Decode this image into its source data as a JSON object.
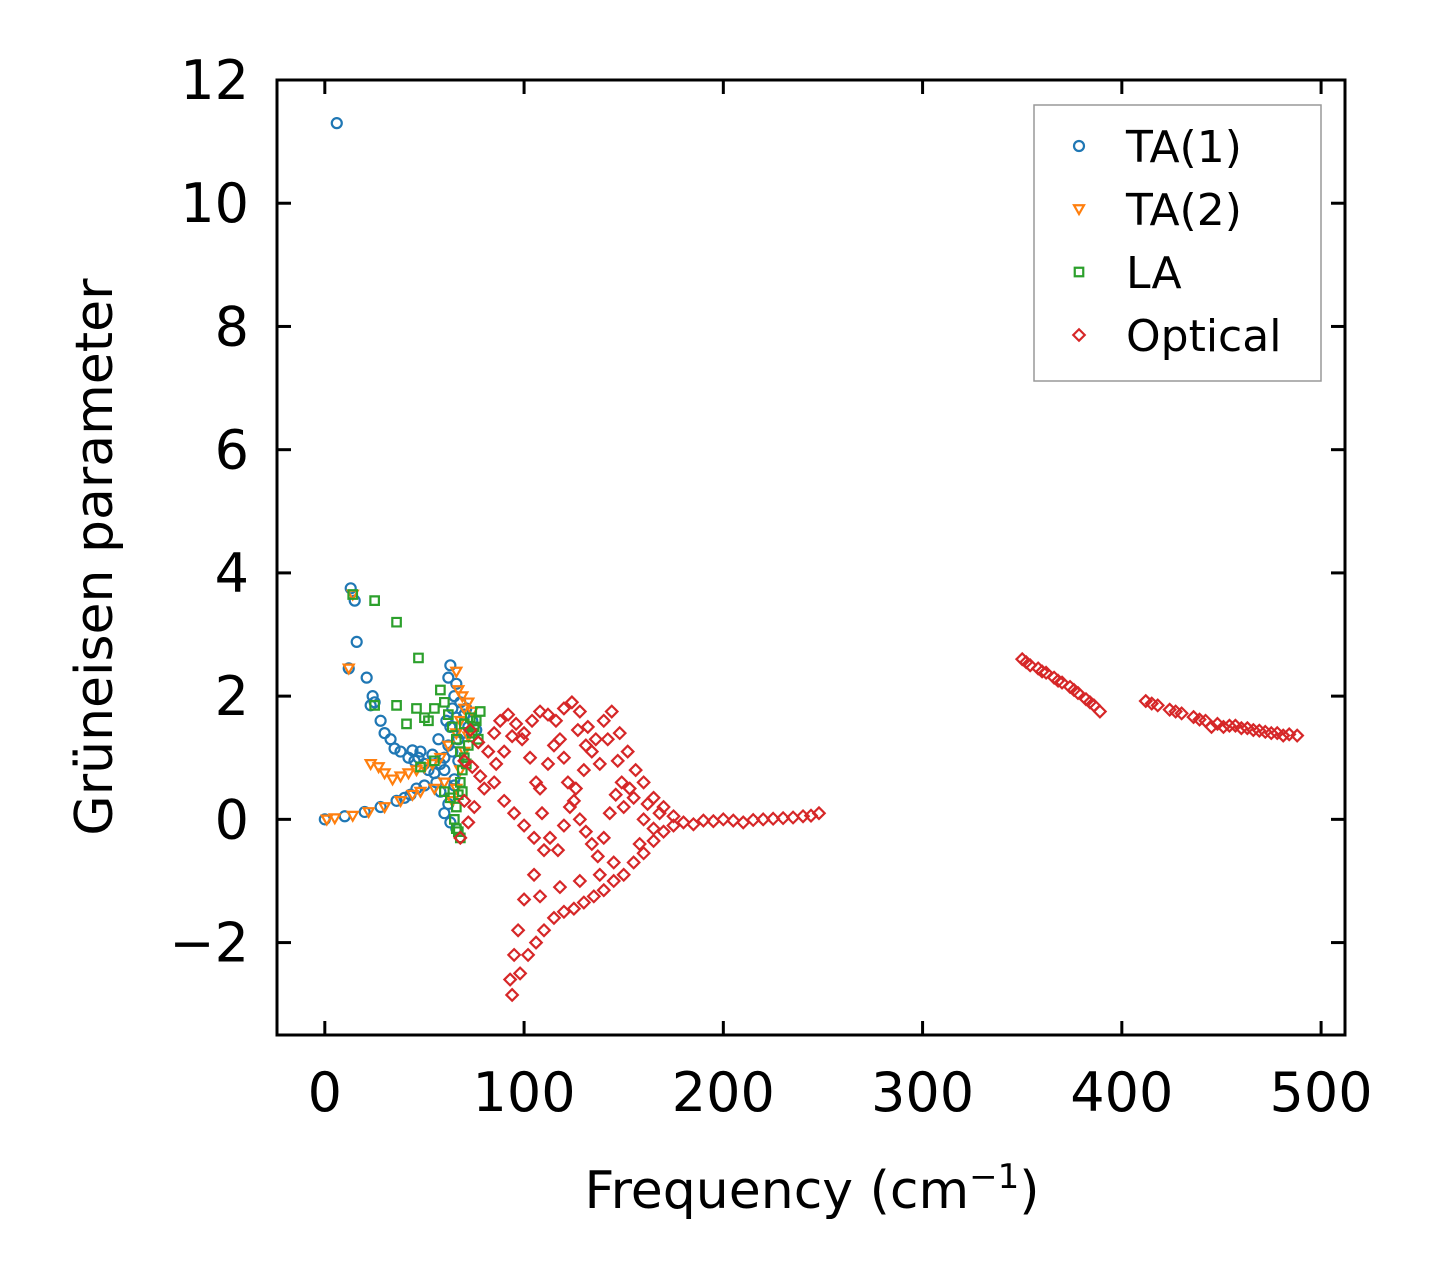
{
  "chart_data": {
    "type": "scatter",
    "title": "",
    "xlabel": "Frequency (cm",
    "xlabel_sup": "−1",
    "xlabel_end": ")",
    "ylabel": "Grüneisen parameter",
    "xlim": [
      -24,
      512
    ],
    "ylim": [
      -3.5,
      12
    ],
    "xticks": [
      0,
      100,
      200,
      300,
      400,
      500
    ],
    "yticks": [
      -2,
      0,
      2,
      4,
      6,
      8,
      10,
      12
    ],
    "xtick_labels": [
      "0",
      "100",
      "200",
      "300",
      "400",
      "500"
    ],
    "ytick_labels": [
      "−2",
      "0",
      "2",
      "4",
      "6",
      "8",
      "10",
      "12"
    ],
    "grid": false,
    "legend_position": "top-right",
    "series": [
      {
        "name": "TA(1)",
        "marker": "circle",
        "color": "#1f77b4",
        "points": [
          [
            6,
            11.3
          ],
          [
            13,
            3.75
          ],
          [
            15,
            3.55
          ],
          [
            16,
            2.88
          ],
          [
            12,
            2.45
          ],
          [
            21,
            2.3
          ],
          [
            24,
            2.0
          ],
          [
            25,
            1.9
          ],
          [
            23,
            1.85
          ],
          [
            28,
            1.6
          ],
          [
            30,
            1.4
          ],
          [
            33,
            1.3
          ],
          [
            35,
            1.15
          ],
          [
            38,
            1.1
          ],
          [
            42,
            1.0
          ],
          [
            45,
            0.95
          ],
          [
            48,
            1.1
          ],
          [
            50,
            0.9
          ],
          [
            52,
            0.8
          ],
          [
            55,
            0.75
          ],
          [
            58,
            0.9
          ],
          [
            60,
            1.0
          ],
          [
            62,
            1.2
          ],
          [
            63,
            1.5
          ],
          [
            64,
            1.8
          ],
          [
            65,
            2.0
          ],
          [
            62,
            2.3
          ],
          [
            63,
            2.5
          ],
          [
            66,
            2.2
          ],
          [
            68,
            1.9
          ],
          [
            70,
            1.7
          ],
          [
            72,
            1.5
          ],
          [
            67,
            1.3
          ],
          [
            64,
            1.1
          ],
          [
            60,
            0.8
          ],
          [
            56,
            0.6
          ],
          [
            50,
            0.55
          ],
          [
            46,
            0.5
          ],
          [
            43,
            0.4
          ],
          [
            40,
            0.35
          ],
          [
            36,
            0.3
          ],
          [
            28,
            0.2
          ],
          [
            20,
            0.12
          ],
          [
            10,
            0.05
          ],
          [
            0,
            0.0
          ],
          [
            60,
            0.1
          ],
          [
            63,
            -0.05
          ],
          [
            66,
            -0.15
          ],
          [
            44,
            1.12
          ],
          [
            47,
            1.0
          ],
          [
            54,
            1.05
          ],
          [
            57,
            1.3
          ],
          [
            61,
            1.6
          ],
          [
            66,
            1.65
          ],
          [
            69,
            1.4
          ],
          [
            71,
            1.8
          ],
          [
            74,
            1.6
          ],
          [
            76,
            1.45
          ],
          [
            65,
            0.65
          ],
          [
            58,
            0.45
          ],
          [
            62,
            0.25
          ],
          [
            65,
            0.55
          ],
          [
            67,
            0.95
          ]
        ]
      },
      {
        "name": "TA(2)",
        "marker": "triangle-down",
        "color": "#ff7f0e",
        "points": [
          [
            12,
            2.45
          ],
          [
            14,
            3.65
          ],
          [
            23,
            0.9
          ],
          [
            27,
            0.85
          ],
          [
            30,
            0.75
          ],
          [
            34,
            0.65
          ],
          [
            38,
            0.7
          ],
          [
            42,
            0.75
          ],
          [
            46,
            0.8
          ],
          [
            50,
            0.85
          ],
          [
            54,
            0.9
          ],
          [
            58,
            1.0
          ],
          [
            62,
            1.2
          ],
          [
            66,
            1.4
          ],
          [
            68,
            1.6
          ],
          [
            70,
            1.8
          ],
          [
            66,
            2.4
          ],
          [
            67,
            2.1
          ],
          [
            69,
            2.0
          ],
          [
            72,
            1.9
          ],
          [
            74,
            1.75
          ],
          [
            60,
            0.6
          ],
          [
            55,
            0.5
          ],
          [
            48,
            0.45
          ],
          [
            44,
            0.4
          ],
          [
            38,
            0.3
          ],
          [
            30,
            0.2
          ],
          [
            22,
            0.12
          ],
          [
            14,
            0.06
          ],
          [
            5,
            0.02
          ],
          [
            1,
            0.0
          ],
          [
            64,
            0.3
          ],
          [
            66,
            0.5
          ],
          [
            68,
            0.8
          ],
          [
            70,
            1.1
          ],
          [
            72,
            1.35
          ]
        ]
      },
      {
        "name": "LA",
        "marker": "square",
        "color": "#2ca02c",
        "points": [
          [
            14,
            3.65
          ],
          [
            25,
            3.55
          ],
          [
            36,
            3.2
          ],
          [
            47,
            2.62
          ],
          [
            25,
            1.85
          ],
          [
            36,
            1.85
          ],
          [
            41,
            1.55
          ],
          [
            46,
            1.8
          ],
          [
            50,
            1.65
          ],
          [
            52,
            1.6
          ],
          [
            55,
            1.8
          ],
          [
            58,
            2.1
          ],
          [
            60,
            1.9
          ],
          [
            62,
            1.7
          ],
          [
            64,
            1.5
          ],
          [
            66,
            1.3
          ],
          [
            68,
            1.1
          ],
          [
            70,
            1.0
          ],
          [
            72,
            1.2
          ],
          [
            74,
            1.4
          ],
          [
            76,
            1.6
          ],
          [
            78,
            1.75
          ],
          [
            69,
            0.8
          ],
          [
            68,
            0.6
          ],
          [
            67,
            0.4
          ],
          [
            66,
            0.2
          ],
          [
            65,
            0.0
          ],
          [
            67,
            -0.2
          ],
          [
            68,
            -0.3
          ],
          [
            60,
            0.45
          ],
          [
            70,
            1.55
          ],
          [
            73,
            1.65
          ],
          [
            75,
            1.5
          ],
          [
            77,
            1.3
          ],
          [
            71,
            0.9
          ],
          [
            69,
            0.45
          ],
          [
            66,
            -0.15
          ],
          [
            63,
            0.35
          ],
          [
            55,
            0.95
          ],
          [
            48,
            0.85
          ]
        ]
      },
      {
        "name": "Optical",
        "marker": "diamond",
        "color": "#d62728",
        "points": [
          [
            68,
            -0.3
          ],
          [
            70,
            0.3
          ],
          [
            72,
            -0.05
          ],
          [
            70,
            0.95
          ],
          [
            74,
            0.85
          ],
          [
            78,
            0.7
          ],
          [
            82,
            1.1
          ],
          [
            85,
            1.4
          ],
          [
            88,
            1.6
          ],
          [
            92,
            1.7
          ],
          [
            96,
            1.55
          ],
          [
            100,
            1.4
          ],
          [
            104,
            1.6
          ],
          [
            108,
            1.75
          ],
          [
            112,
            1.7
          ],
          [
            116,
            1.6
          ],
          [
            120,
            1.8
          ],
          [
            124,
            1.9
          ],
          [
            128,
            1.75
          ],
          [
            132,
            1.5
          ],
          [
            136,
            1.3
          ],
          [
            140,
            1.6
          ],
          [
            144,
            1.75
          ],
          [
            148,
            1.4
          ],
          [
            152,
            1.1
          ],
          [
            156,
            0.8
          ],
          [
            160,
            0.6
          ],
          [
            165,
            0.35
          ],
          [
            170,
            0.2
          ],
          [
            175,
            0.05
          ],
          [
            180,
            -0.05
          ],
          [
            190,
            -0.02
          ],
          [
            200,
            0.0
          ],
          [
            210,
            -0.05
          ],
          [
            220,
            0.0
          ],
          [
            230,
            0.02
          ],
          [
            240,
            0.05
          ],
          [
            248,
            0.1
          ],
          [
            85,
            0.6
          ],
          [
            90,
            0.3
          ],
          [
            95,
            0.1
          ],
          [
            100,
            -0.1
          ],
          [
            105,
            -0.3
          ],
          [
            108,
            0.5
          ],
          [
            112,
            0.9
          ],
          [
            115,
            1.2
          ],
          [
            110,
            -0.5
          ],
          [
            105,
            -0.9
          ],
          [
            100,
            -1.3
          ],
          [
            97,
            -1.8
          ],
          [
            95,
            -2.2
          ],
          [
            93,
            -2.6
          ],
          [
            94,
            -2.85
          ],
          [
            98,
            -2.5
          ],
          [
            102,
            -2.2
          ],
          [
            106,
            -2.0
          ],
          [
            110,
            -1.8
          ],
          [
            115,
            -1.6
          ],
          [
            120,
            -1.5
          ],
          [
            125,
            -1.45
          ],
          [
            130,
            -1.35
          ],
          [
            135,
            -1.25
          ],
          [
            140,
            -1.15
          ],
          [
            145,
            -1.0
          ],
          [
            150,
            -0.9
          ],
          [
            155,
            -0.7
          ],
          [
            160,
            -0.55
          ],
          [
            165,
            -0.35
          ],
          [
            170,
            -0.2
          ],
          [
            118,
            1.3
          ],
          [
            120,
            1.0
          ],
          [
            122,
            0.6
          ],
          [
            125,
            0.3
          ],
          [
            128,
            0.0
          ],
          [
            131,
            -0.2
          ],
          [
            134,
            -0.4
          ],
          [
            137,
            -0.6
          ],
          [
            140,
            -0.3
          ],
          [
            143,
            0.1
          ],
          [
            146,
            0.4
          ],
          [
            149,
            0.6
          ],
          [
            138,
            0.9
          ],
          [
            134,
            1.1
          ],
          [
            130,
            0.8
          ],
          [
            126,
            0.5
          ],
          [
            123,
            0.2
          ],
          [
            120,
            -0.1
          ],
          [
            117,
            -0.5
          ],
          [
            113,
            -0.3
          ],
          [
            109,
            0.1
          ],
          [
            106,
            0.6
          ],
          [
            103,
            1.0
          ],
          [
            99,
            1.3
          ],
          [
            94,
            1.35
          ],
          [
            90,
            1.1
          ],
          [
            86,
            0.9
          ],
          [
            80,
            0.5
          ],
          [
            75,
            0.2
          ],
          [
            73,
            1.45
          ],
          [
            77,
            1.25
          ],
          [
            150,
            0.2
          ],
          [
            155,
            0.35
          ],
          [
            160,
            0.0
          ],
          [
            165,
            -0.15
          ],
          [
            158,
            -0.4
          ],
          [
            145,
            -0.7
          ],
          [
            138,
            -0.9
          ],
          [
            128,
            -1.0
          ],
          [
            118,
            -1.1
          ],
          [
            108,
            -1.25
          ],
          [
            127,
            1.45
          ],
          [
            131,
            1.2
          ],
          [
            142,
            1.3
          ],
          [
            147,
            0.95
          ],
          [
            153,
            0.5
          ],
          [
            162,
            0.25
          ],
          [
            168,
            0.1
          ],
          [
            175,
            -0.1
          ],
          [
            185,
            -0.08
          ],
          [
            195,
            -0.03
          ],
          [
            205,
            -0.02
          ],
          [
            215,
            -0.01
          ],
          [
            225,
            0.01
          ],
          [
            235,
            0.03
          ],
          [
            244,
            0.06
          ],
          [
            350,
            2.6
          ],
          [
            354,
            2.5
          ],
          [
            358,
            2.45
          ],
          [
            362,
            2.38
          ],
          [
            366,
            2.3
          ],
          [
            370,
            2.22
          ],
          [
            374,
            2.15
          ],
          [
            378,
            2.05
          ],
          [
            382,
            1.95
          ],
          [
            386,
            1.85
          ],
          [
            389,
            1.75
          ],
          [
            352,
            2.55
          ],
          [
            360,
            2.4
          ],
          [
            368,
            2.25
          ],
          [
            376,
            2.1
          ],
          [
            384,
            1.9
          ],
          [
            412,
            1.92
          ],
          [
            418,
            1.85
          ],
          [
            424,
            1.78
          ],
          [
            430,
            1.72
          ],
          [
            436,
            1.66
          ],
          [
            442,
            1.6
          ],
          [
            448,
            1.55
          ],
          [
            454,
            1.52
          ],
          [
            460,
            1.48
          ],
          [
            466,
            1.45
          ],
          [
            472,
            1.42
          ],
          [
            478,
            1.4
          ],
          [
            484,
            1.38
          ],
          [
            488,
            1.36
          ],
          [
            415,
            1.88
          ],
          [
            427,
            1.75
          ],
          [
            439,
            1.62
          ],
          [
            445,
            1.5
          ],
          [
            451,
            1.5
          ],
          [
            457,
            1.52
          ],
          [
            463,
            1.48
          ],
          [
            469,
            1.44
          ],
          [
            475,
            1.4
          ],
          [
            481,
            1.36
          ]
        ]
      }
    ]
  }
}
